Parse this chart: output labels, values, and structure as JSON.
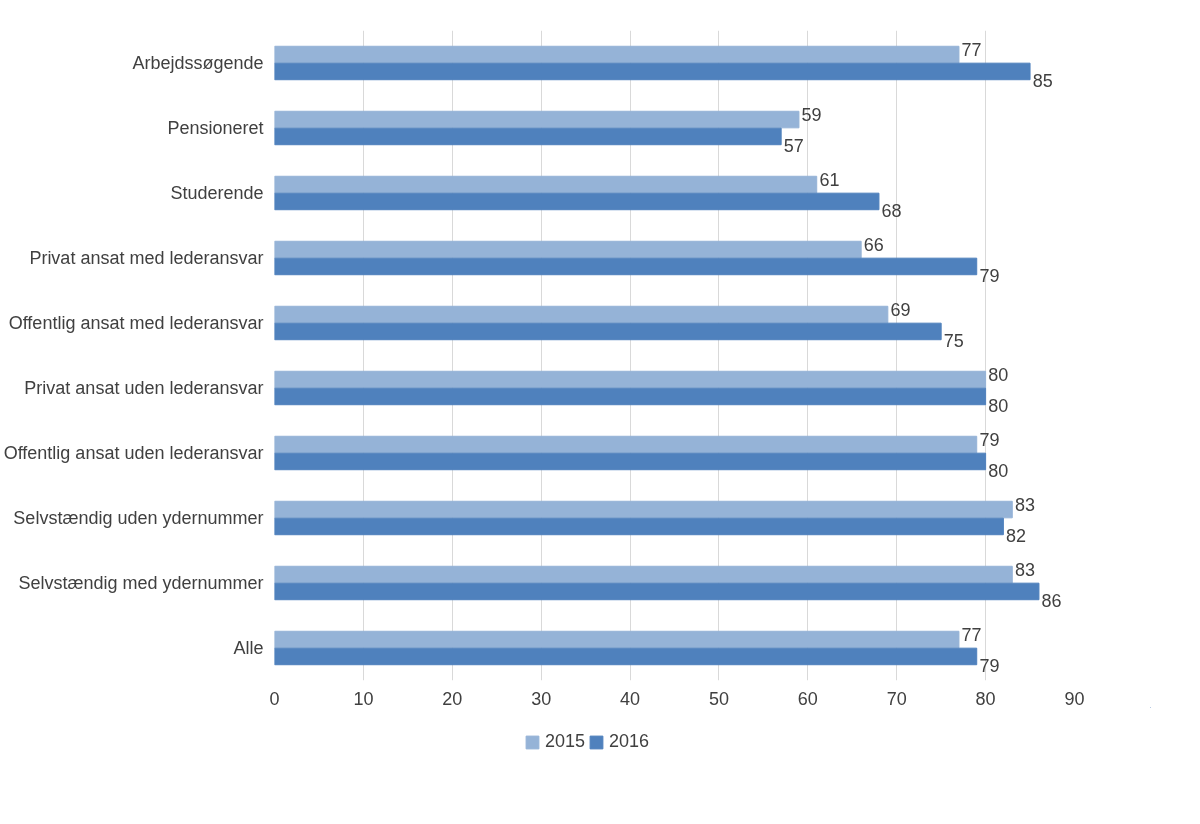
{
  "chart_data": {
    "type": "bar",
    "orientation": "horizontal",
    "categories": [
      "Arbejdssøgende",
      "Pensioneret",
      "Studerende",
      "Privat ansat med lederansvar",
      "Offentlig ansat med lederansvar",
      "Privat ansat uden lederansvar",
      "Offentlig ansat uden lederansvar",
      "Selvstændig uden ydernummer",
      "Selvstændig med ydernummer",
      "Alle"
    ],
    "series": [
      {
        "name": "2015",
        "color": "#95b3d7",
        "values": [
          77,
          59,
          61,
          66,
          69,
          80,
          79,
          83,
          83,
          77
        ]
      },
      {
        "name": "2016",
        "color": "#4f81bd",
        "values": [
          85,
          57,
          68,
          79,
          75,
          80,
          80,
          82,
          86,
          79
        ]
      }
    ],
    "xlim": [
      0,
      90
    ],
    "xticks": [
      0,
      10,
      20,
      30,
      40,
      50,
      60,
      70,
      80,
      90
    ],
    "grid": "x",
    "legend": "bottom",
    "data_labels": true
  }
}
